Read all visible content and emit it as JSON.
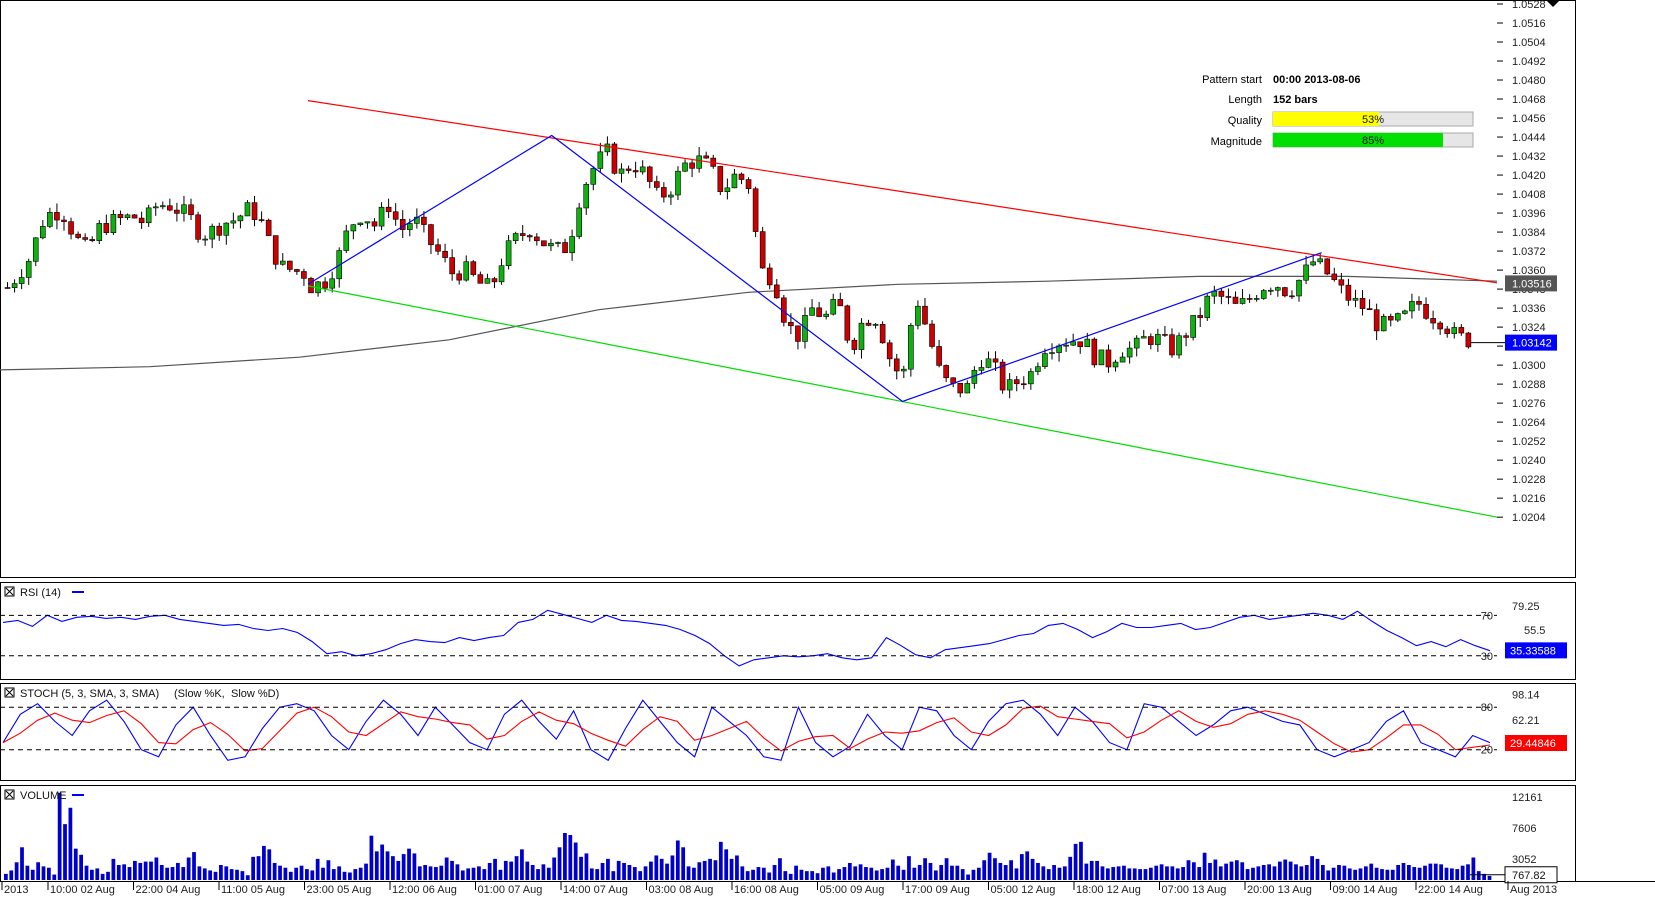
{
  "chart_data": {
    "type": "candlestick",
    "price_axis": {
      "ticks": [
        "1.0528",
        "1.0516",
        "1.0504",
        "1.0492",
        "1.0480",
        "1.0468",
        "1.0456",
        "1.0444",
        "1.0432",
        "1.0420",
        "1.0408",
        "1.0396",
        "1.0384",
        "1.0372",
        "1.0360",
        "1.0348",
        "1.0336",
        "1.0324",
        "1.0312",
        "1.0300",
        "1.0288",
        "1.0276",
        "1.0264",
        "1.0252",
        "1.0240",
        "1.0228",
        "1.0216",
        "1.0204"
      ],
      "range": [
        1.0194,
        1.0528
      ],
      "current_price": "1.03142",
      "moving_average_value": "1.03516",
      "current_price_color": "#0000ff",
      "ma_color": "#555555"
    },
    "time_axis": {
      "labels": [
        "2013",
        "10:00 02 Aug",
        "22:00 04 Aug",
        "11:00 05 Aug",
        "23:00 05 Aug",
        "12:00 06 Aug",
        "01:00 07 Aug",
        "14:00 07 Aug",
        "03:00 08 Aug",
        "16:00 08 Aug",
        "05:00 09 Aug",
        "17:00 09 Aug",
        "05:00 12 Aug",
        "18:00 12 Aug",
        "07:00 13 Aug",
        "20:00 13 Aug",
        "09:00 14 Aug",
        "22:00 14 Aug",
        "Aug 2013"
      ]
    },
    "pattern_info": {
      "rows": [
        {
          "key": "Pattern start",
          "value": "00:00 2013-08-06"
        },
        {
          "key": "Length",
          "value": "152 bars"
        }
      ],
      "quality": {
        "label": "Quality",
        "text": "53%",
        "fraction": 0.53,
        "color": "#ffff00"
      },
      "magnitude": {
        "label": "Magnitude",
        "text": "85%",
        "fraction": 0.85,
        "color": "#00e000"
      }
    },
    "lines": {
      "resistance_color": "#ff0000",
      "support_color": "#00dd00",
      "pattern_color": "#0000ff",
      "resistance": [
        [
          0.0,
          1.0467
        ],
        [
          1.0,
          1.0352
        ]
      ],
      "support": [
        [
          0.0,
          1.035
        ],
        [
          1.0,
          1.0204
        ]
      ],
      "zigzag": [
        [
          0.0,
          1.0351
        ],
        [
          0.205,
          1.0445
        ],
        [
          0.5,
          1.0277
        ],
        [
          0.8525,
          1.0371
        ]
      ]
    },
    "anchor_values": [
      1.035,
      1.0352,
      1.0365,
      1.0388,
      1.0396,
      1.0388,
      1.0402,
      1.0385,
      1.0393,
      1.038,
      1.037,
      1.0358,
      1.036,
      1.0352,
      1.0348,
      1.037,
      1.038,
      1.0386,
      1.0378,
      1.0372,
      1.0375,
      1.041,
      1.0425,
      1.0435,
      1.042,
      1.0428,
      1.042,
      1.0405,
      1.0412,
      1.0426,
      1.043,
      1.0425,
      1.041,
      1.042,
      1.0415,
      1.036,
      1.0355,
      1.0325,
      1.0318,
      1.0336,
      1.033,
      1.034,
      1.031,
      1.033,
      1.033,
      1.0305,
      1.029,
      1.0345,
      1.032,
      1.0292,
      1.0285,
      1.0285,
      1.0305,
      1.03,
      1.0284,
      1.029,
      1.0295,
      1.0312,
      1.0315,
      1.0316,
      1.0316,
      1.0305,
      1.0302,
      1.031,
      1.031,
      1.0318,
      1.0316,
      1.031,
      1.032,
      1.033,
      1.0345,
      1.0342,
      1.0336,
      1.0342,
      1.035,
      1.0352,
      1.0346,
      1.0355,
      1.0366,
      1.0358,
      1.0348,
      1.034,
      1.0336,
      1.0325,
      1.0325,
      1.033,
      1.034,
      1.0332,
      1.0328,
      1.0318,
      1.0316
    ],
    "sma_200": [
      [
        0.0,
        1.0297
      ],
      [
        0.1,
        1.0299
      ],
      [
        0.2,
        1.0305
      ],
      [
        0.3,
        1.0316
      ],
      [
        0.4,
        1.0335
      ],
      [
        0.5,
        1.0346
      ],
      [
        0.6,
        1.0351
      ],
      [
        0.7,
        1.0353
      ],
      [
        0.8,
        1.0356
      ],
      [
        0.9,
        1.0356
      ],
      [
        1.0,
        1.0353
      ]
    ],
    "rsi": {
      "title": "RSI (14)",
      "legend_color": "#0000ff",
      "line_color": "#0000ff",
      "range": [
        8,
        100
      ],
      "upper_level": 70,
      "lower_level": 30,
      "ticks": [
        "79.25",
        "55.5",
        "70",
        "30"
      ],
      "value": "35.33588",
      "badge_color": "#0000ff",
      "values": [
        63,
        65,
        59,
        70,
        64,
        68,
        69,
        67,
        68,
        66,
        69,
        70,
        66,
        64,
        62,
        60,
        61,
        57,
        55,
        57,
        53,
        44,
        32,
        34,
        30,
        32,
        36,
        42,
        46,
        44,
        43,
        48,
        45,
        48,
        50,
        63,
        66,
        75,
        71,
        67,
        63,
        70,
        65,
        64,
        62,
        60,
        56,
        50,
        42,
        30,
        20,
        26,
        28,
        30,
        29,
        30,
        32,
        28,
        26,
        28,
        48,
        40,
        31,
        28,
        36,
        38,
        40,
        42,
        46,
        50,
        52,
        60,
        62,
        56,
        48,
        54,
        62,
        58,
        58,
        60,
        62,
        56,
        58,
        63,
        68,
        70,
        66,
        68,
        70,
        72,
        70,
        66,
        74,
        64,
        55,
        48,
        40,
        44,
        39,
        46,
        40,
        35
      ]
    },
    "stoch": {
      "title": "STOCH (5, 3, SMA, 3, SMA)",
      "k_label": "(Slow %K,",
      "d_label": "Slow %D)",
      "k_color": "#0000ff",
      "d_color": "#ff0000",
      "range": [
        -20,
        110
      ],
      "upper_level": 80,
      "lower_level": 20,
      "ticks": [
        "98.14",
        "62.21",
        "80",
        "20"
      ],
      "value": "29.44846",
      "badge_color": "#ff0000",
      "k_values": [
        30,
        70,
        85,
        60,
        40,
        75,
        90,
        60,
        20,
        10,
        55,
        80,
        40,
        5,
        10,
        50,
        80,
        85,
        75,
        40,
        20,
        60,
        90,
        70,
        40,
        80,
        55,
        30,
        20,
        70,
        90,
        60,
        35,
        75,
        20,
        5,
        50,
        90,
        60,
        30,
        10,
        80,
        60,
        40,
        10,
        5,
        80,
        30,
        10,
        25,
        70,
        40,
        20,
        80,
        75,
        40,
        20,
        60,
        85,
        90,
        70,
        40,
        80,
        60,
        30,
        20,
        85,
        80,
        60,
        40,
        55,
        75,
        80,
        70,
        60,
        55,
        20,
        10,
        20,
        30,
        60,
        75,
        30,
        20,
        10,
        40,
        30
      ]
    },
    "volume": {
      "title": "VOLUME",
      "legend_color": "#0000ff",
      "bar_color": "#0000cc",
      "range": [
        0,
        13500
      ],
      "ticks": [
        "12161",
        "7606",
        "3052"
      ],
      "value": "767.82",
      "values": [
        900,
        1400,
        2600,
        4800,
        2100,
        1500,
        2600,
        2000,
        1800,
        800,
        12800,
        8200,
        10600,
        4600,
        3700,
        2100,
        1500,
        1700,
        900,
        1200,
        3100,
        2200,
        2300,
        1900,
        2800,
        2500,
        2700,
        2700,
        3300,
        2200,
        1800,
        1900,
        2500,
        1900,
        3300,
        4100,
        2000,
        1700,
        1400,
        1200,
        2200,
        2000,
        1600,
        1500,
        1300,
        700,
        3400,
        3500,
        5000,
        4500,
        2500,
        2100,
        1800,
        1200,
        1800,
        2100,
        1600,
        1400,
        3100,
        1800,
        2900,
        1600,
        2000,
        1200,
        1100,
        1600,
        1800,
        2400,
        6500,
        4200,
        5200,
        4200,
        3500,
        2800,
        3800,
        4600,
        3900,
        2000,
        2200,
        2000,
        1900,
        2100,
        3300,
        2800,
        2300,
        1400,
        1700,
        1800,
        2000,
        1600,
        2500,
        3100,
        1500,
        2800,
        2700,
        3500,
        4500,
        2700,
        2200,
        1600,
        2300,
        1800,
        3300,
        4800,
        6900,
        6600,
        5500,
        3400,
        3900,
        1700,
        1600,
        2500,
        3100,
        1300,
        2800,
        2500,
        2200,
        1900,
        1300,
        2000,
        2700,
        3600,
        3100,
        2400,
        3600,
        5800,
        4800,
        2000,
        1800,
        2600,
        2800,
        3100,
        2900,
        5600,
        4500,
        3100,
        3600,
        2000,
        1300,
        1500,
        1900,
        1800,
        1100,
        2200,
        3200,
        1300,
        900,
        2100,
        1500,
        1300,
        1300,
        1000,
        1800,
        2000,
        1100,
        1600,
        1900,
        2500,
        2000,
        2300,
        1900,
        1800,
        1400,
        1600,
        1800,
        3000,
        2100,
        1500,
        3500,
        1800,
        2200,
        3200,
        2500,
        1400,
        2200,
        3200,
        2100,
        2100,
        1600,
        800,
        1500,
        1800,
        2900,
        4000,
        3200,
        2500,
        2200,
        2900,
        1700,
        3800,
        4200,
        3100,
        2500,
        2000,
        1600,
        2200,
        1800,
        2000,
        3400,
        5300,
        5600,
        2400,
        2800,
        2800,
        2000,
        1700,
        1900,
        2000,
        2100,
        1700,
        1700,
        1600,
        1600,
        1800,
        2100,
        2300,
        2000,
        2000,
        1700,
        1900,
        2900,
        2600,
        1900,
        4000,
        2500,
        3000,
        2000,
        2400,
        2700,
        2900,
        2600,
        1600,
        1800,
        2000,
        2200,
        2300,
        2000,
        2700,
        3000,
        2700,
        2300,
        2000,
        2200,
        3500,
        3100,
        2200,
        1400,
        1800,
        2200,
        2100,
        1700,
        1500,
        1700,
        2000,
        2400,
        1800,
        1600,
        1500,
        1500,
        2200,
        2500,
        2200,
        1900,
        1800,
        2100,
        2400,
        2400,
        2300,
        1800,
        1700,
        1600,
        2100,
        2300,
        3300,
        1300,
        900,
        600
      ]
    }
  },
  "series": {
    "pre_pattern_seed": [
      1.0349,
      1.0358,
      1.0368,
      1.039,
      1.0398,
      1.0395,
      1.038,
      1.0372,
      1.0386,
      1.039,
      1.0392,
      1.0394,
      1.039,
      1.04,
      1.0402,
      1.0398,
      1.0393,
      1.0382,
      1.0385,
      1.039,
      1.0392,
      1.0398,
      1.0395,
      1.0376,
      1.0362,
      1.036,
      1.0358
    ]
  }
}
